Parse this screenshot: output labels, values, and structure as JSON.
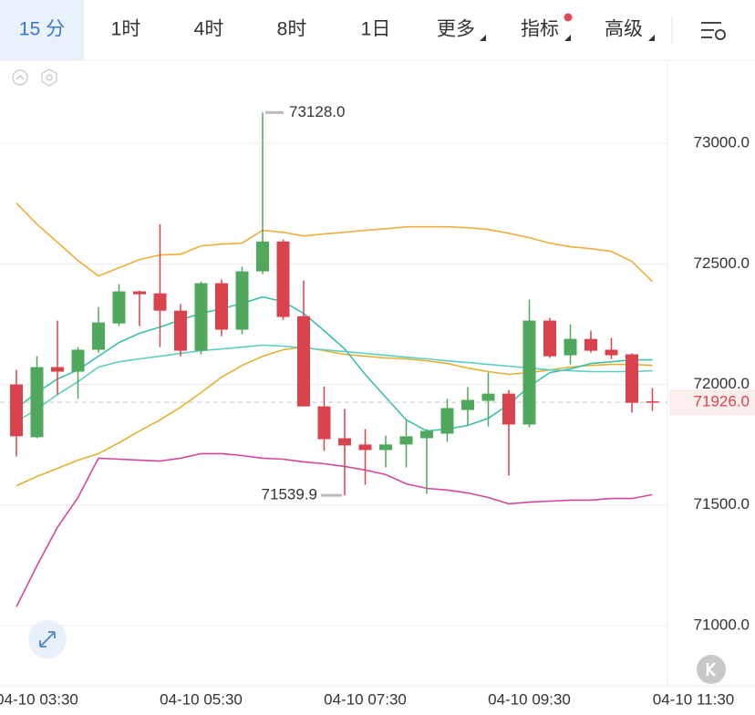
{
  "tabs": [
    "15 分",
    "1时",
    "4时",
    "8时",
    "1日",
    "更多",
    "指标",
    "高级"
  ],
  "chart_data": {
    "type": "candlestick",
    "categories": [
      null,
      "04-10 03:30",
      null,
      null,
      null,
      null,
      null,
      null,
      null,
      "04-10 05:30",
      null,
      null,
      null,
      null,
      null,
      null,
      null,
      "04-10 07:30",
      null,
      null,
      null,
      null,
      null,
      null,
      null,
      "04-10 09:30",
      null,
      null,
      null,
      null,
      null,
      null,
      null,
      "04-10 11:30"
    ],
    "open": [
      72000,
      71781,
      72072,
      72053,
      72144,
      72253,
      72386,
      72378,
      72306,
      72140,
      72420,
      72227,
      72469,
      72593,
      72283,
      71909,
      71777,
      71751,
      71728,
      71751,
      71777,
      71796,
      71894,
      71932,
      71962,
      71834,
      72265,
      72121,
      72189,
      72144,
      72125,
      71930,
      null,
      null
    ],
    "high": [
      72060,
      72117,
      72265,
      72155,
      72321,
      72416,
      72389,
      72665,
      72333,
      72427,
      72435,
      72488,
      73128,
      72601,
      72431,
      71992,
      71898,
      71815,
      71788,
      71856,
      71815,
      71940,
      71989,
      72049,
      71977,
      72352,
      72276,
      72249,
      72223,
      72193,
      72129,
      71985,
      null,
      null
    ],
    "low": [
      71701,
      71777,
      71958,
      71940,
      72132,
      72242,
      72242,
      72155,
      72117,
      72125,
      72200,
      72208,
      72457,
      72268,
      71909,
      71724,
      71539.9,
      71584,
      71656,
      71656,
      71546,
      71762,
      71830,
      71826,
      71622,
      71822,
      72110,
      72083,
      72132,
      72106,
      71883,
      71890,
      null,
      null
    ],
    "close": [
      71785,
      72072,
      72053,
      72144,
      72257,
      72386,
      72374,
      72306,
      72140,
      72420,
      72227,
      72469,
      72593,
      72280,
      71909,
      71773,
      71747,
      71728,
      71751,
      71785,
      71807,
      71902,
      71936,
      71962,
      71834,
      72265,
      72117,
      72189,
      72140,
      72121,
      71924,
      71926,
      null,
      null
    ],
    "up_color": "#4fa85b",
    "down_color": "#d9434d",
    "lines": [
      {
        "color": "#efae3a",
        "values": [
          72752,
          72665,
          72590,
          72514,
          72450,
          72484,
          72518,
          72537,
          72540,
          72575,
          72582,
          72586,
          72639,
          72631,
          72616,
          72624,
          72631,
          72639,
          72646,
          72654,
          72654,
          72654,
          72650,
          72643,
          72627,
          72609,
          72586,
          72571,
          72563,
          72552,
          72510,
          72427,
          null,
          null
        ]
      },
      {
        "color": "#d6479c",
        "values": [
          71078,
          71248,
          71407,
          71531,
          71694,
          71690,
          71686,
          71682,
          71694,
          71713,
          71713,
          71705,
          71694,
          71690,
          71679,
          71671,
          71660,
          71645,
          71626,
          71588,
          71569,
          71562,
          71550,
          71531,
          71505,
          71512,
          71516,
          71520,
          71520,
          71527,
          71527,
          71543,
          null,
          null
        ]
      },
      {
        "color": "#e6b02f",
        "values": [
          71580,
          71618,
          71652,
          71686,
          71713,
          71758,
          71807,
          71853,
          71906,
          71966,
          72030,
          72079,
          72117,
          72144,
          72155,
          72140,
          72125,
          72117,
          72110,
          72106,
          72098,
          72087,
          72068,
          72053,
          72042,
          72049,
          72060,
          72072,
          72079,
          72083,
          72083,
          72079,
          null,
          null
        ]
      },
      {
        "color": "#3bbfae",
        "values": [
          71902,
          71966,
          72023,
          72060,
          72117,
          72174,
          72212,
          72238,
          72268,
          72295,
          72314,
          72336,
          72363,
          72344,
          72295,
          72223,
          72147,
          72042,
          71947,
          71853,
          71807,
          71815,
          71830,
          71860,
          71917,
          71992,
          72049,
          72064,
          72087,
          72094,
          72102,
          72102,
          null,
          null
        ]
      },
      {
        "color": "#5ccfc4",
        "values": [
          71845,
          71898,
          71958,
          72011,
          72072,
          72094,
          72106,
          72117,
          72129,
          72140,
          72147,
          72155,
          72163,
          72159,
          72151,
          72144,
          72136,
          72129,
          72121,
          72113,
          72106,
          72098,
          72091,
          72083,
          72076,
          72068,
          72060,
          72057,
          72053,
          72053,
          72053,
          72057,
          null,
          null
        ]
      }
    ],
    "ylim": [
      70750,
      73345
    ],
    "yticks": [
      {
        "value": 71000,
        "label": "71000.0"
      },
      {
        "value": 71500,
        "label": "71500.0"
      },
      {
        "value": 72000,
        "label": "72000.0"
      },
      {
        "value": 72500,
        "label": "72500.0"
      },
      {
        "value": 73000,
        "label": "73000.0"
      }
    ],
    "grid": true,
    "last_price": {
      "value": 71926,
      "label": "71926.0"
    },
    "high_marker": {
      "value": 73128,
      "label": "73128.0"
    },
    "low_marker": {
      "value": 71539.9,
      "label": "71539.9"
    }
  }
}
